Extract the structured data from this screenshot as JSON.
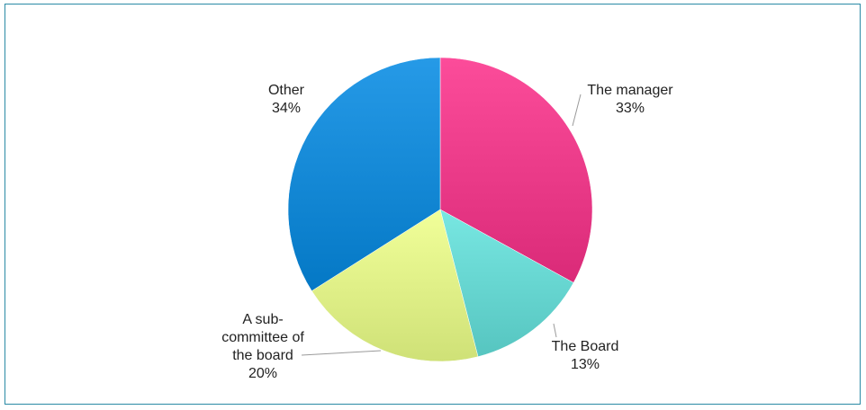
{
  "chart_data": {
    "type": "pie",
    "title": "",
    "slices": [
      {
        "label_lines": [
          "The manager"
        ],
        "value": 33,
        "value_label": "33%",
        "color": "#e0307e"
      },
      {
        "label_lines": [
          "The Board"
        ],
        "value": 13,
        "value_label": "13%",
        "color": "#5ccbc6"
      },
      {
        "label_lines": [
          "A sub-",
          "committee of",
          "the board"
        ],
        "value": 20,
        "value_label": "20%",
        "color": "#d5e77d"
      },
      {
        "label_lines": [
          "Other"
        ],
        "value": 34,
        "value_label": "34%",
        "color": "#0a7ecb"
      }
    ],
    "legend": "none",
    "colors": {
      "border": "#2a8aa5",
      "leader_line": "#9a9a9a"
    }
  }
}
